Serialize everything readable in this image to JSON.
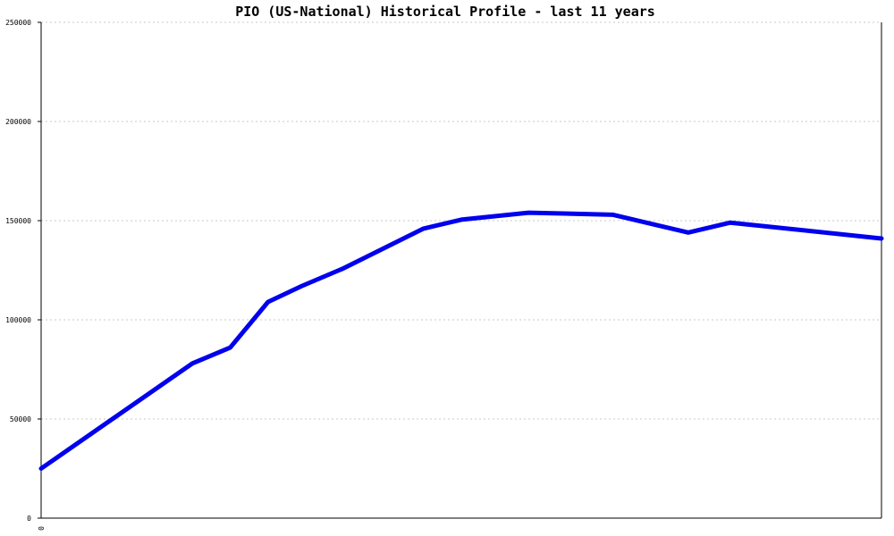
{
  "chart_data": {
    "type": "line",
    "title": "PIO (US-National) Historical Profile - last 11 years",
    "xlabel": "",
    "ylabel": "",
    "ylim": [
      0,
      250000
    ],
    "y_ticks": [
      0,
      50000,
      100000,
      150000,
      200000,
      250000
    ],
    "y_tick_labels": [
      "0",
      "50000",
      "100000",
      "150000",
      "200000",
      "250000"
    ],
    "x_tick_labels": [
      "0"
    ],
    "grid": true,
    "series": [
      {
        "color": "#0000ee",
        "x": [
          0,
          0.18,
          0.225,
          0.27,
          0.31,
          0.36,
          0.455,
          0.5,
          0.58,
          0.68,
          0.77,
          0.82,
          1.0
        ],
        "values": [
          25000,
          78000,
          86000,
          109000,
          117000,
          126000,
          146000,
          150500,
          154000,
          153000,
          144000,
          149000,
          141000
        ]
      }
    ]
  }
}
